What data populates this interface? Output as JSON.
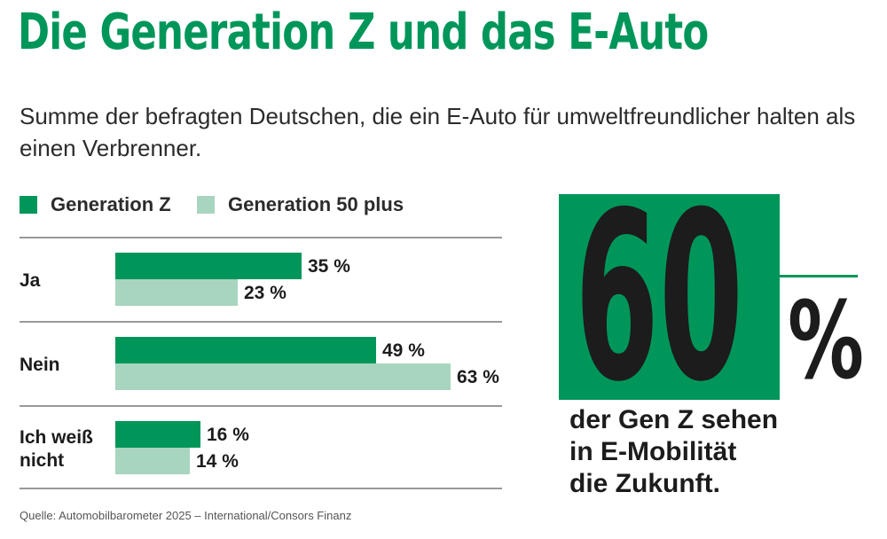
{
  "title": "Die Generation Z und das E-Auto",
  "subtitle": "Summe der befragten Deutschen, die ein E-Auto für umweltfreundlicher halten als einen Verbrenner.",
  "colors": {
    "gen_z": "#00965a",
    "gen_50": "#a8d5bf",
    "title": "#00965a",
    "text": "#1c1c1c",
    "rule": "#333333"
  },
  "chart_data": {
    "type": "bar",
    "orientation": "horizontal",
    "categories": [
      "Ja",
      "Nein",
      "Ich weiß nicht"
    ],
    "category_lines": [
      [
        "Ja"
      ],
      [
        "Nein"
      ],
      [
        "Ich weiß",
        "nicht"
      ]
    ],
    "series": [
      {
        "name": "Generation Z",
        "values": [
          35,
          49,
          16
        ],
        "labels": [
          "35 %",
          "49 %",
          "16 %"
        ]
      },
      {
        "name": "Generation 50 plus",
        "values": [
          23,
          63,
          14
        ],
        "labels": [
          "23 %",
          "63 %",
          "14 %"
        ]
      }
    ],
    "xlim": [
      0,
      100
    ],
    "legend": "top-left",
    "grid": false
  },
  "highlight": {
    "value": "60",
    "unit": "%",
    "caption_lines": [
      "der Gen Z sehen",
      "in E-Mobilität",
      "die Zukunft."
    ]
  },
  "source": "Quelle: Automobilbarometer 2025 – International/Consors Finanz"
}
